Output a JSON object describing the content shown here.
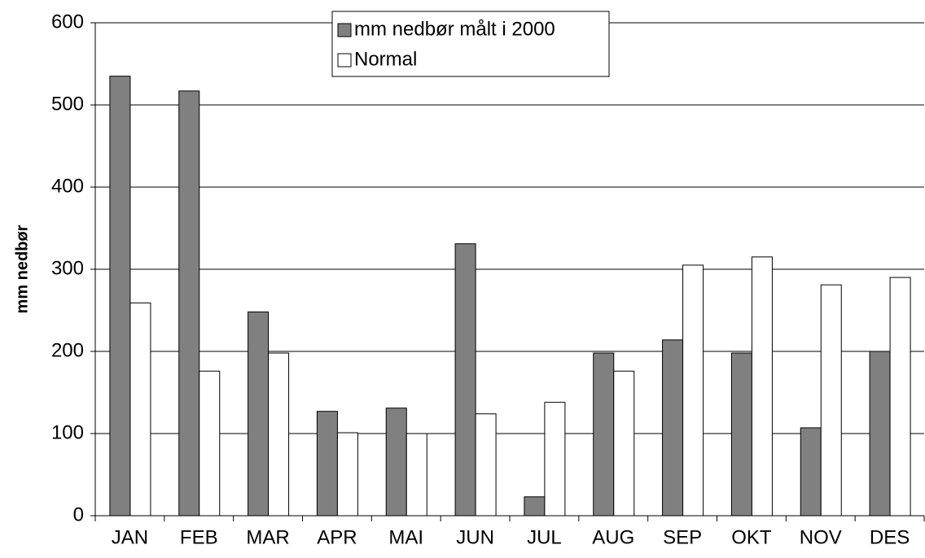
{
  "chart_data": {
    "type": "bar",
    "y_label": "mm nedbør",
    "categories": [
      "JAN",
      "FEB",
      "MAR",
      "APR",
      "MAI",
      "JUN",
      "JUL",
      "AUG",
      "SEP",
      "OKT",
      "NOV",
      "DES"
    ],
    "series": [
      {
        "name": "mm nedbør målt i 2000",
        "color": "#808080",
        "values": [
          535,
          517,
          248,
          127,
          131,
          331,
          23,
          198,
          214,
          198,
          107,
          200
        ]
      },
      {
        "name": "Normal",
        "color": "#ffffff",
        "values": [
          259,
          176,
          198,
          101,
          100,
          124,
          138,
          176,
          305,
          315,
          281,
          290
        ]
      }
    ],
    "ylim": [
      0,
      600
    ],
    "yticks": [
      0,
      100,
      200,
      300,
      400,
      500,
      600
    ],
    "grid": true,
    "legend": "top"
  }
}
